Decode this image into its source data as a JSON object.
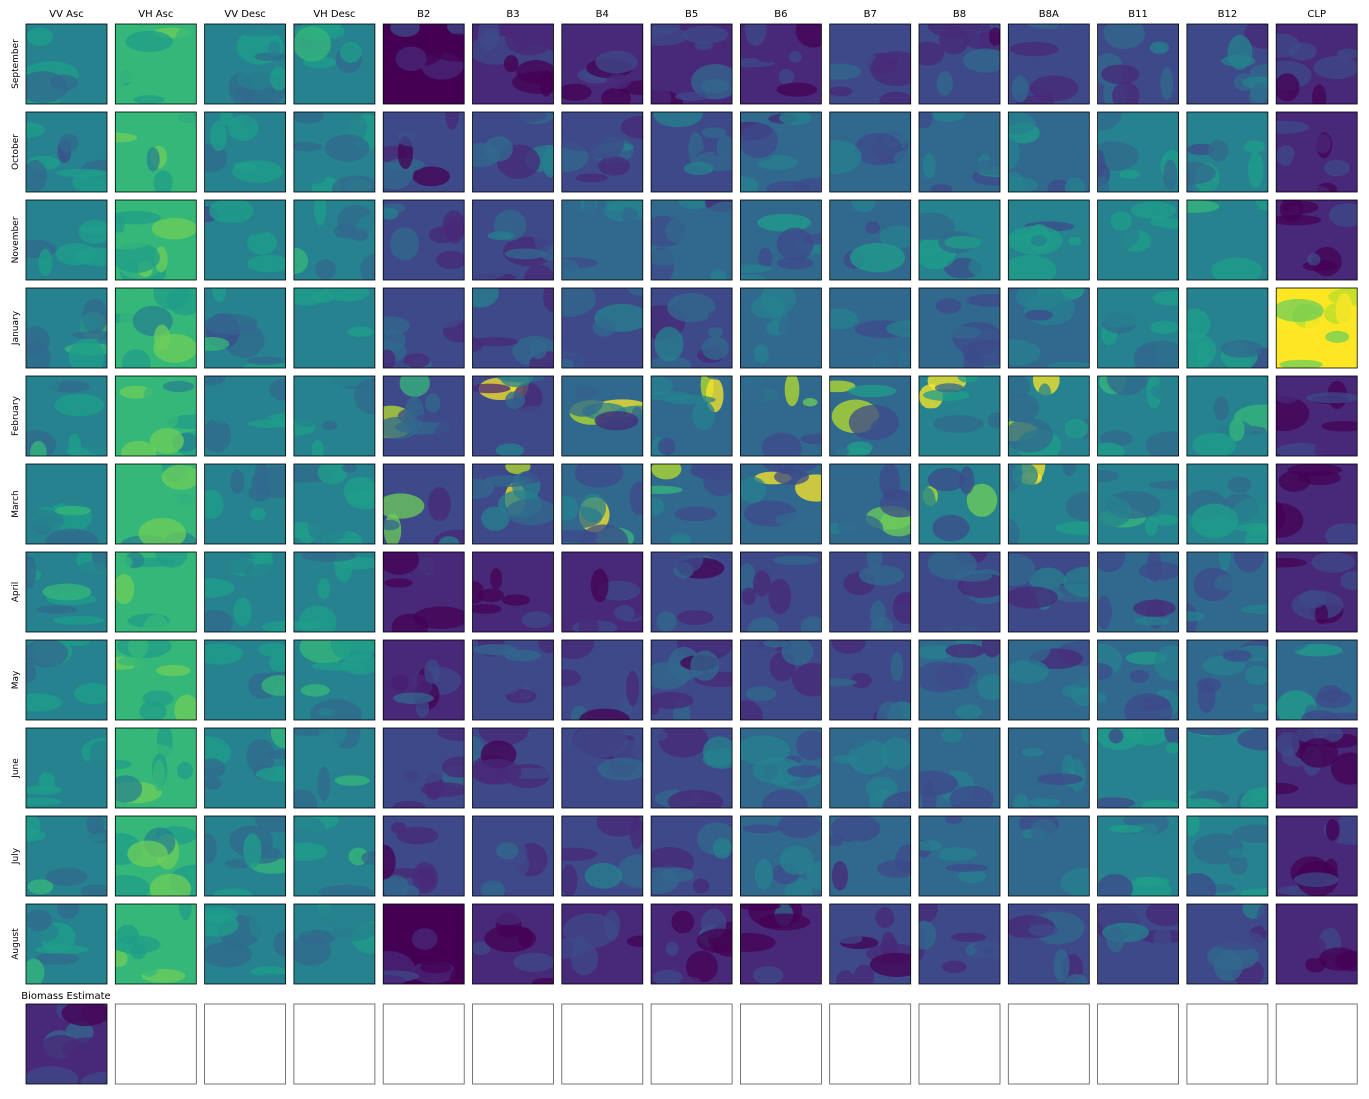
{
  "columns": [
    "VV Asc",
    "VH Asc",
    "VV Desc",
    "VH Desc",
    "B2",
    "B3",
    "B4",
    "B5",
    "B6",
    "B7",
    "B8",
    "B8A",
    "B11",
    "B12",
    "CLP"
  ],
  "rows": [
    "September",
    "October",
    "November",
    "January",
    "February",
    "March",
    "April",
    "May",
    "June",
    "July",
    "August"
  ],
  "biomass_title": "Biomass Estimate"
}
